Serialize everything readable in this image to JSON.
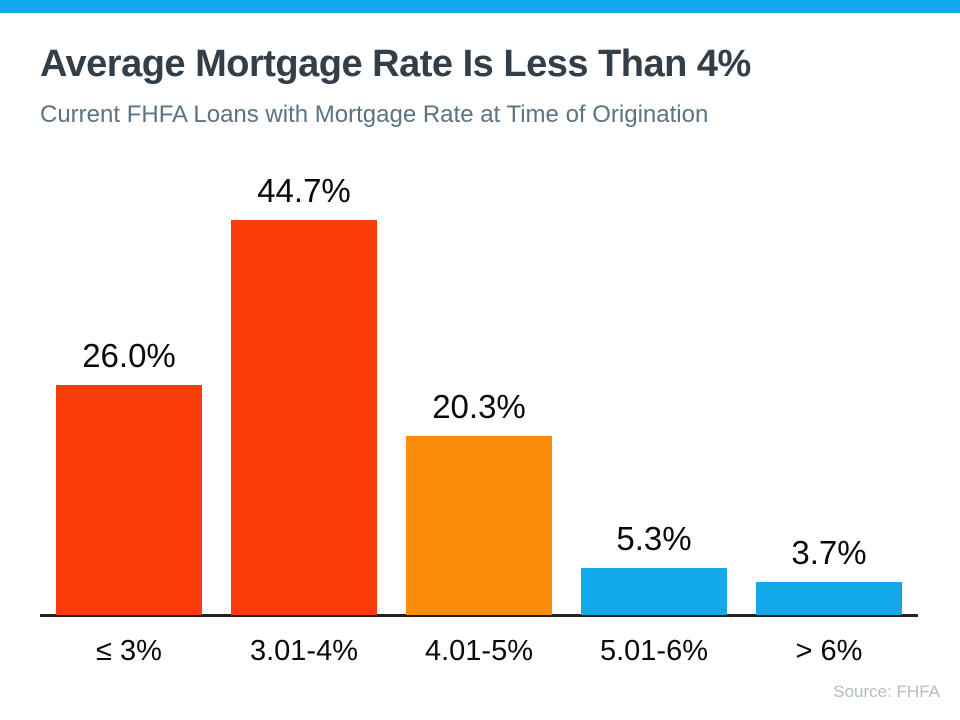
{
  "header": {
    "title": "Average Mortgage Rate Is Less Than 4%",
    "subtitle": "Current FHFA Loans with Mortgage Rate at Time of Origination"
  },
  "footer": {
    "source": "Source: FHFA"
  },
  "theme": {
    "stripe_color": "#12A9EB",
    "title_color": "#333E48",
    "subtitle_color": "#5B7383",
    "axis_color": "#222222",
    "data_label_color": "#0A0A0A",
    "source_color": "#B3BDC3",
    "red_orange": "#FA3B0A",
    "orange": "#FB8D0A",
    "blue": "#12A9EB"
  },
  "chart_data": {
    "type": "bar",
    "title": "Average Mortgage Rate Is Less Than 4%",
    "subtitle": "Current FHFA Loans with Mortgage Rate at Time of Origination",
    "categories": [
      "≤ 3%",
      "3.01-4%",
      "4.01-5%",
      "5.01-6%",
      "> 6%"
    ],
    "values": [
      26.0,
      44.7,
      20.3,
      5.3,
      3.7
    ],
    "value_labels": [
      "26.0%",
      "44.7%",
      "20.3%",
      "5.3%",
      "3.7%"
    ],
    "bar_colors": [
      "#FA3B0A",
      "#FA3B0A",
      "#FB8D0A",
      "#12A9EB",
      "#12A9EB"
    ],
    "xlabel": "",
    "ylabel": "",
    "ylim": [
      0,
      47
    ],
    "grid": false,
    "legend": "none",
    "annotations": [
      "Source: FHFA"
    ]
  }
}
